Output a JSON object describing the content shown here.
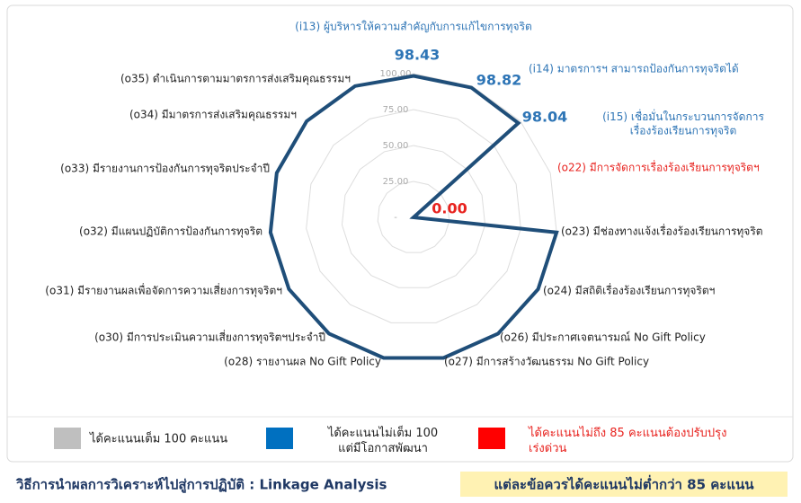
{
  "chart_data": {
    "type": "radar",
    "categories": [
      "(i13) ผู้บริหารให้ความสำคัญกับการแก้ไขการทุจริต",
      "(i14) มาตรการฯ สามารถป้องกันการทุจริตได้",
      "(i15) เชื่อมั่นในกระบวนการจัดการ\nเรื่องร้องเรียนการทุจริต",
      "(o22) มีการจัดการเรื่องร้องเรียนการทุจริตฯ",
      "(o23) มีช่องทางแจ้งเรื่องร้องเรียนการทุจริต",
      "(o24) มีสถิติเรื่องร้องเรียนการทุจริตฯ",
      "(o26) มีประกาศเจตนารมณ์ No Gift Policy",
      "(o27) มีการสร้างวัฒนธรรม No Gift Policy",
      "(o28) รายงานผล No Gift Policy",
      "(o30) มีการประเมินความเสี่ยงการทุจริตฯประจำปี",
      "(o31) มีรายงานผลเพื่อจัดการความเสี่ยงการทุจริตฯ",
      "(o32) มีแผนปฏิบัติการป้องกันการทุจริต",
      "(o33) มีรายงานการป้องกันการทุจริตประจำปี",
      "(o34) มีมาตรการส่งเสริมคุณธรรมฯ",
      "(o35) ดำเนินการตามมาตรการส่งเสริมคุณธรรมฯ"
    ],
    "values": [
      98.43,
      98.82,
      98.04,
      0,
      100,
      100,
      100,
      100,
      100,
      100,
      100,
      100,
      100,
      100,
      100
    ],
    "value_labels": [
      "98.43",
      "98.82",
      "98.04",
      "0.00",
      null,
      null,
      null,
      null,
      null,
      null,
      null,
      null,
      null,
      null,
      null
    ],
    "label_colors": [
      "#2e75b6",
      "#2e75b6",
      "#2e75b6",
      "#e8231f",
      "#222",
      "#222",
      "#222",
      "#222",
      "#222",
      "#222",
      "#222",
      "#222",
      "#222",
      "#222",
      "#222"
    ],
    "color": "#1f4e79",
    "ylim": [
      0,
      100
    ],
    "yticks": [
      {
        "value": 0,
        "label": "-"
      },
      {
        "value": 25,
        "label": "25.00"
      },
      {
        "value": 50,
        "label": "50.00"
      },
      {
        "value": 75,
        "label": "75.00"
      },
      {
        "value": 100,
        "label": "100.00"
      }
    ],
    "grid": true,
    "legend": [
      {
        "color": "#bfbfbf",
        "label": "ได้คะแนนเต็ม 100 คะแนน"
      },
      {
        "color": "#0070c0",
        "label": "ได้คะแนนไม่เต็ม 100\nแต่มีโอกาสพัฒนา"
      },
      {
        "color": "#ff0000",
        "label": "ได้คะแนนไม่ถึง 85 คะแนนต้องปรับปรุง\nเร่งด่วน"
      }
    ]
  },
  "footer": {
    "left": "วิธีการนำผลการวิเคราะห์ไปสู่การปฏิบัติ : Linkage Analysis",
    "right": "แต่ละข้อควรได้คะแนนไม่ต่ำกว่า 85 คะแนน"
  }
}
